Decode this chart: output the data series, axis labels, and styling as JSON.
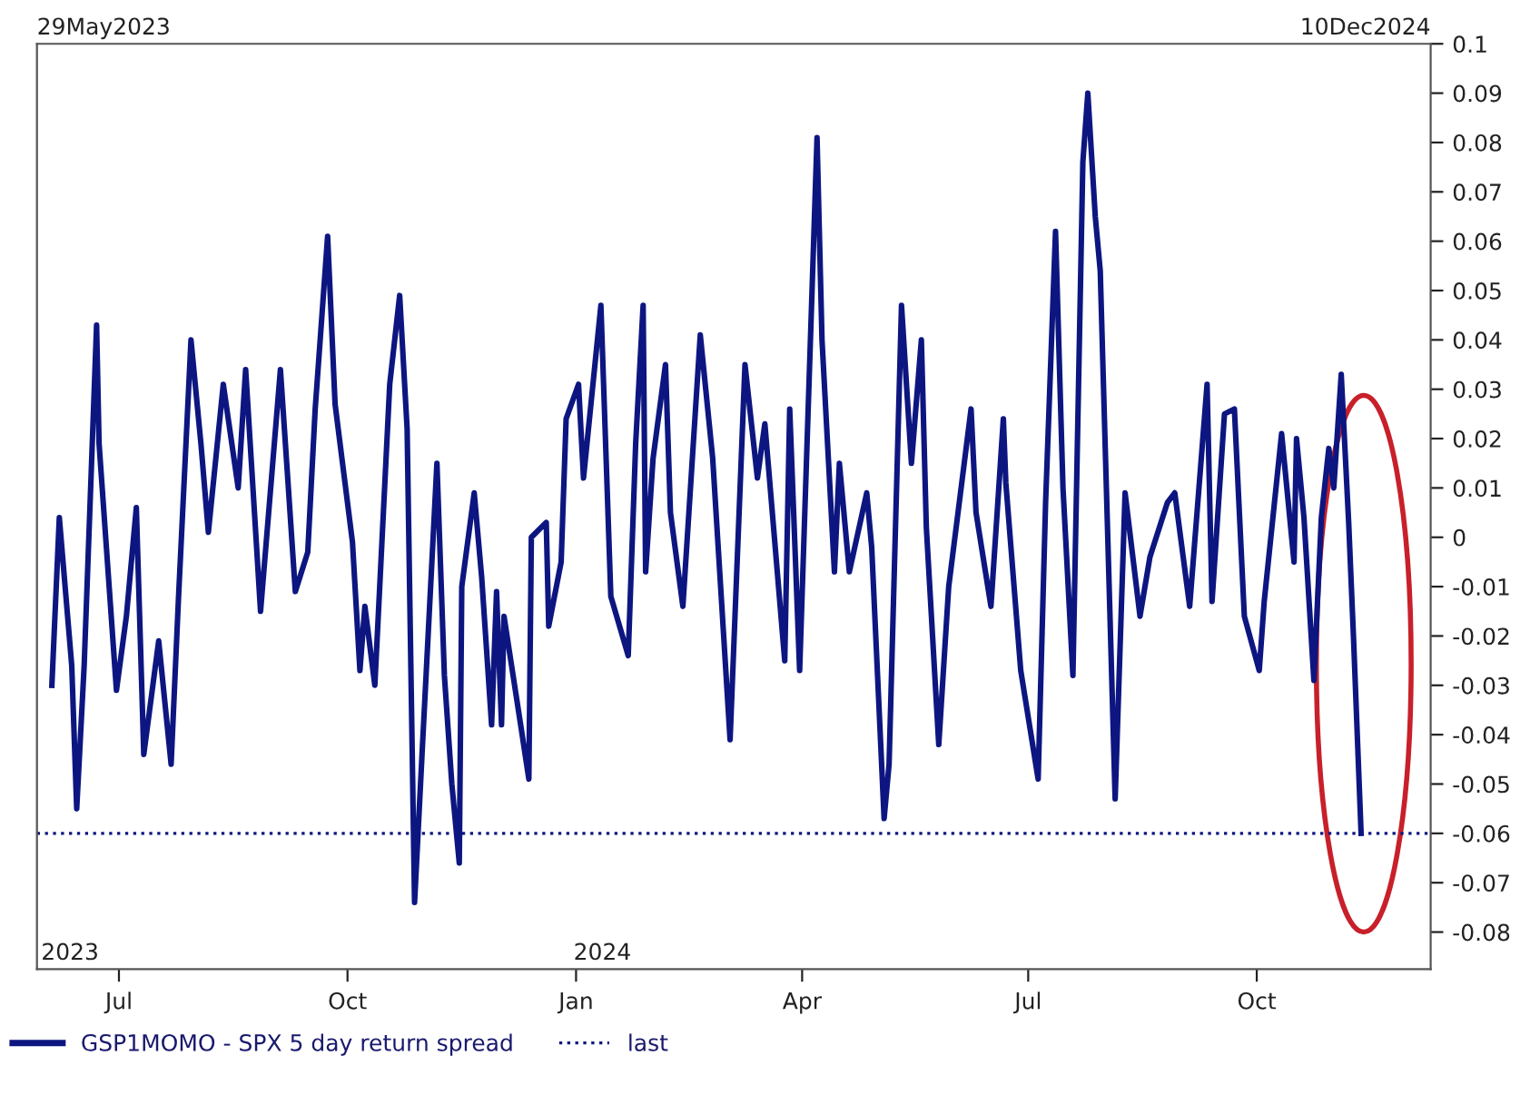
{
  "chart_data": {
    "type": "line",
    "x": [
      "2023-06-04",
      "2023-06-07",
      "2023-06-12",
      "2023-06-14",
      "2023-06-17",
      "2023-06-22",
      "2023-06-23",
      "2023-06-30",
      "2023-07-04",
      "2023-07-08",
      "2023-07-11",
      "2023-07-17",
      "2023-07-22",
      "2023-07-25",
      "2023-07-30",
      "2023-08-03",
      "2023-08-06",
      "2023-08-12",
      "2023-08-18",
      "2023-08-21",
      "2023-08-27",
      "2023-09-04",
      "2023-09-10",
      "2023-09-15",
      "2023-09-18",
      "2023-09-23",
      "2023-09-26",
      "2023-10-03",
      "2023-10-06",
      "2023-10-08",
      "2023-10-12",
      "2023-10-18",
      "2023-10-22",
      "2023-10-25",
      "2023-10-28",
      "2023-10-31",
      "2023-11-06",
      "2023-11-09",
      "2023-11-12",
      "2023-11-15",
      "2023-11-16",
      "2023-11-21",
      "2023-11-24",
      "2023-11-28",
      "2023-11-30",
      "2023-12-02",
      "2023-12-03",
      "2023-12-10",
      "2023-12-13",
      "2023-12-14",
      "2023-12-20",
      "2023-12-21",
      "2023-12-26",
      "2023-12-28",
      "2024-01-02",
      "2024-01-04",
      "2024-01-11",
      "2024-01-15",
      "2024-01-22",
      "2024-01-25",
      "2024-01-28",
      "2024-01-29",
      "2024-02-01",
      "2024-02-06",
      "2024-02-08",
      "2024-02-13",
      "2024-02-20",
      "2024-02-25",
      "2024-03-03",
      "2024-03-09",
      "2024-03-14",
      "2024-03-17",
      "2024-03-25",
      "2024-03-27",
      "2024-03-31",
      "2024-04-07",
      "2024-04-09",
      "2024-04-14",
      "2024-04-16",
      "2024-04-20",
      "2024-04-27",
      "2024-04-29",
      "2024-05-04",
      "2024-05-06",
      "2024-05-11",
      "2024-05-15",
      "2024-05-19",
      "2024-05-21",
      "2024-05-26",
      "2024-05-30",
      "2024-06-08",
      "2024-06-10",
      "2024-06-16",
      "2024-06-21",
      "2024-06-22",
      "2024-06-28",
      "2024-07-05",
      "2024-07-08",
      "2024-07-12",
      "2024-07-15",
      "2024-07-19",
      "2024-07-23",
      "2024-07-25",
      "2024-07-28",
      "2024-07-30",
      "2024-08-05",
      "2024-08-09",
      "2024-08-15",
      "2024-08-19",
      "2024-08-26",
      "2024-08-29",
      "2024-09-04",
      "2024-09-11",
      "2024-09-13",
      "2024-09-18",
      "2024-09-22",
      "2024-09-26",
      "2024-10-02",
      "2024-10-04",
      "2024-10-11",
      "2024-10-16",
      "2024-10-17",
      "2024-10-20",
      "2024-10-24",
      "2024-10-27",
      "2024-10-30",
      "2024-11-01",
      "2024-11-04",
      "2024-11-07",
      "2024-11-09",
      "2024-11-12"
    ],
    "series": [
      {
        "name": "GSP1MOMO - SPX 5 day return spread",
        "color": "#0d1680",
        "values": [
          -0.03,
          0.004,
          -0.026,
          -0.055,
          -0.026,
          0.043,
          0.019,
          -0.031,
          -0.016,
          0.006,
          -0.044,
          -0.021,
          -0.046,
          -0.012,
          0.04,
          0.019,
          0.001,
          0.031,
          0.01,
          0.034,
          -0.015,
          0.034,
          -0.011,
          -0.003,
          0.026,
          0.061,
          0.027,
          -0.001,
          -0.027,
          -0.014,
          -0.03,
          0.031,
          0.049,
          0.022,
          -0.074,
          -0.044,
          0.015,
          -0.028,
          -0.05,
          -0.066,
          -0.01,
          0.009,
          -0.008,
          -0.038,
          -0.011,
          -0.038,
          -0.016,
          -0.039,
          -0.049,
          0.0,
          0.003,
          -0.018,
          -0.005,
          0.024,
          0.031,
          0.012,
          0.047,
          -0.012,
          -0.024,
          0.019,
          0.047,
          -0.007,
          0.016,
          0.035,
          0.005,
          -0.014,
          0.041,
          0.016,
          -0.041,
          0.035,
          0.012,
          0.023,
          -0.025,
          0.026,
          -0.027,
          0.081,
          0.04,
          -0.007,
          0.015,
          -0.007,
          0.009,
          -0.002,
          -0.057,
          -0.046,
          0.047,
          0.015,
          0.04,
          0.002,
          -0.042,
          -0.01,
          0.026,
          0.005,
          -0.014,
          0.024,
          0.011,
          -0.027,
          -0.049,
          0.007,
          0.062,
          0.01,
          -0.028,
          0.076,
          0.09,
          0.065,
          0.054,
          -0.053,
          0.009,
          -0.016,
          -0.004,
          0.007,
          0.009,
          -0.014,
          0.031,
          -0.013,
          0.025,
          0.026,
          -0.016,
          -0.027,
          -0.013,
          0.021,
          -0.005,
          0.02,
          0.004,
          -0.029,
          0.004,
          0.018,
          0.01,
          0.033,
          0.003,
          -0.021,
          -0.06
        ]
      }
    ],
    "xlim": [
      "2023-05-29",
      "2024-12-10"
    ],
    "xticks": [
      {
        "value": "2023-07-01",
        "label": "Jul"
      },
      {
        "value": "2023-10-01",
        "label": "Oct"
      },
      {
        "value": "2024-01-01",
        "label": "Jan"
      },
      {
        "value": "2024-04-01",
        "label": "Apr"
      },
      {
        "value": "2024-07-01",
        "label": "Jul"
      },
      {
        "value": "2024-10-01",
        "label": "Oct"
      }
    ],
    "ylim": [
      -0.0875,
      0.1
    ],
    "yticks": [
      -0.08,
      -0.07,
      -0.06,
      -0.05,
      -0.04,
      -0.03,
      -0.02,
      -0.01,
      0,
      0.01,
      0.02,
      0.03,
      0.04,
      0.05,
      0.06,
      0.07,
      0.08,
      0.09,
      0.1
    ],
    "ref_lines": [
      {
        "axis": "y",
        "value": -0.06,
        "label": "last",
        "color": "#0d1680",
        "line_style": "dotted"
      }
    ],
    "annotations": [
      "29May2023",
      "10Dec2024",
      "2023",
      "2024"
    ],
    "legend": "bottom",
    "grid": false,
    "line_style": "solid",
    "marker": "none"
  }
}
